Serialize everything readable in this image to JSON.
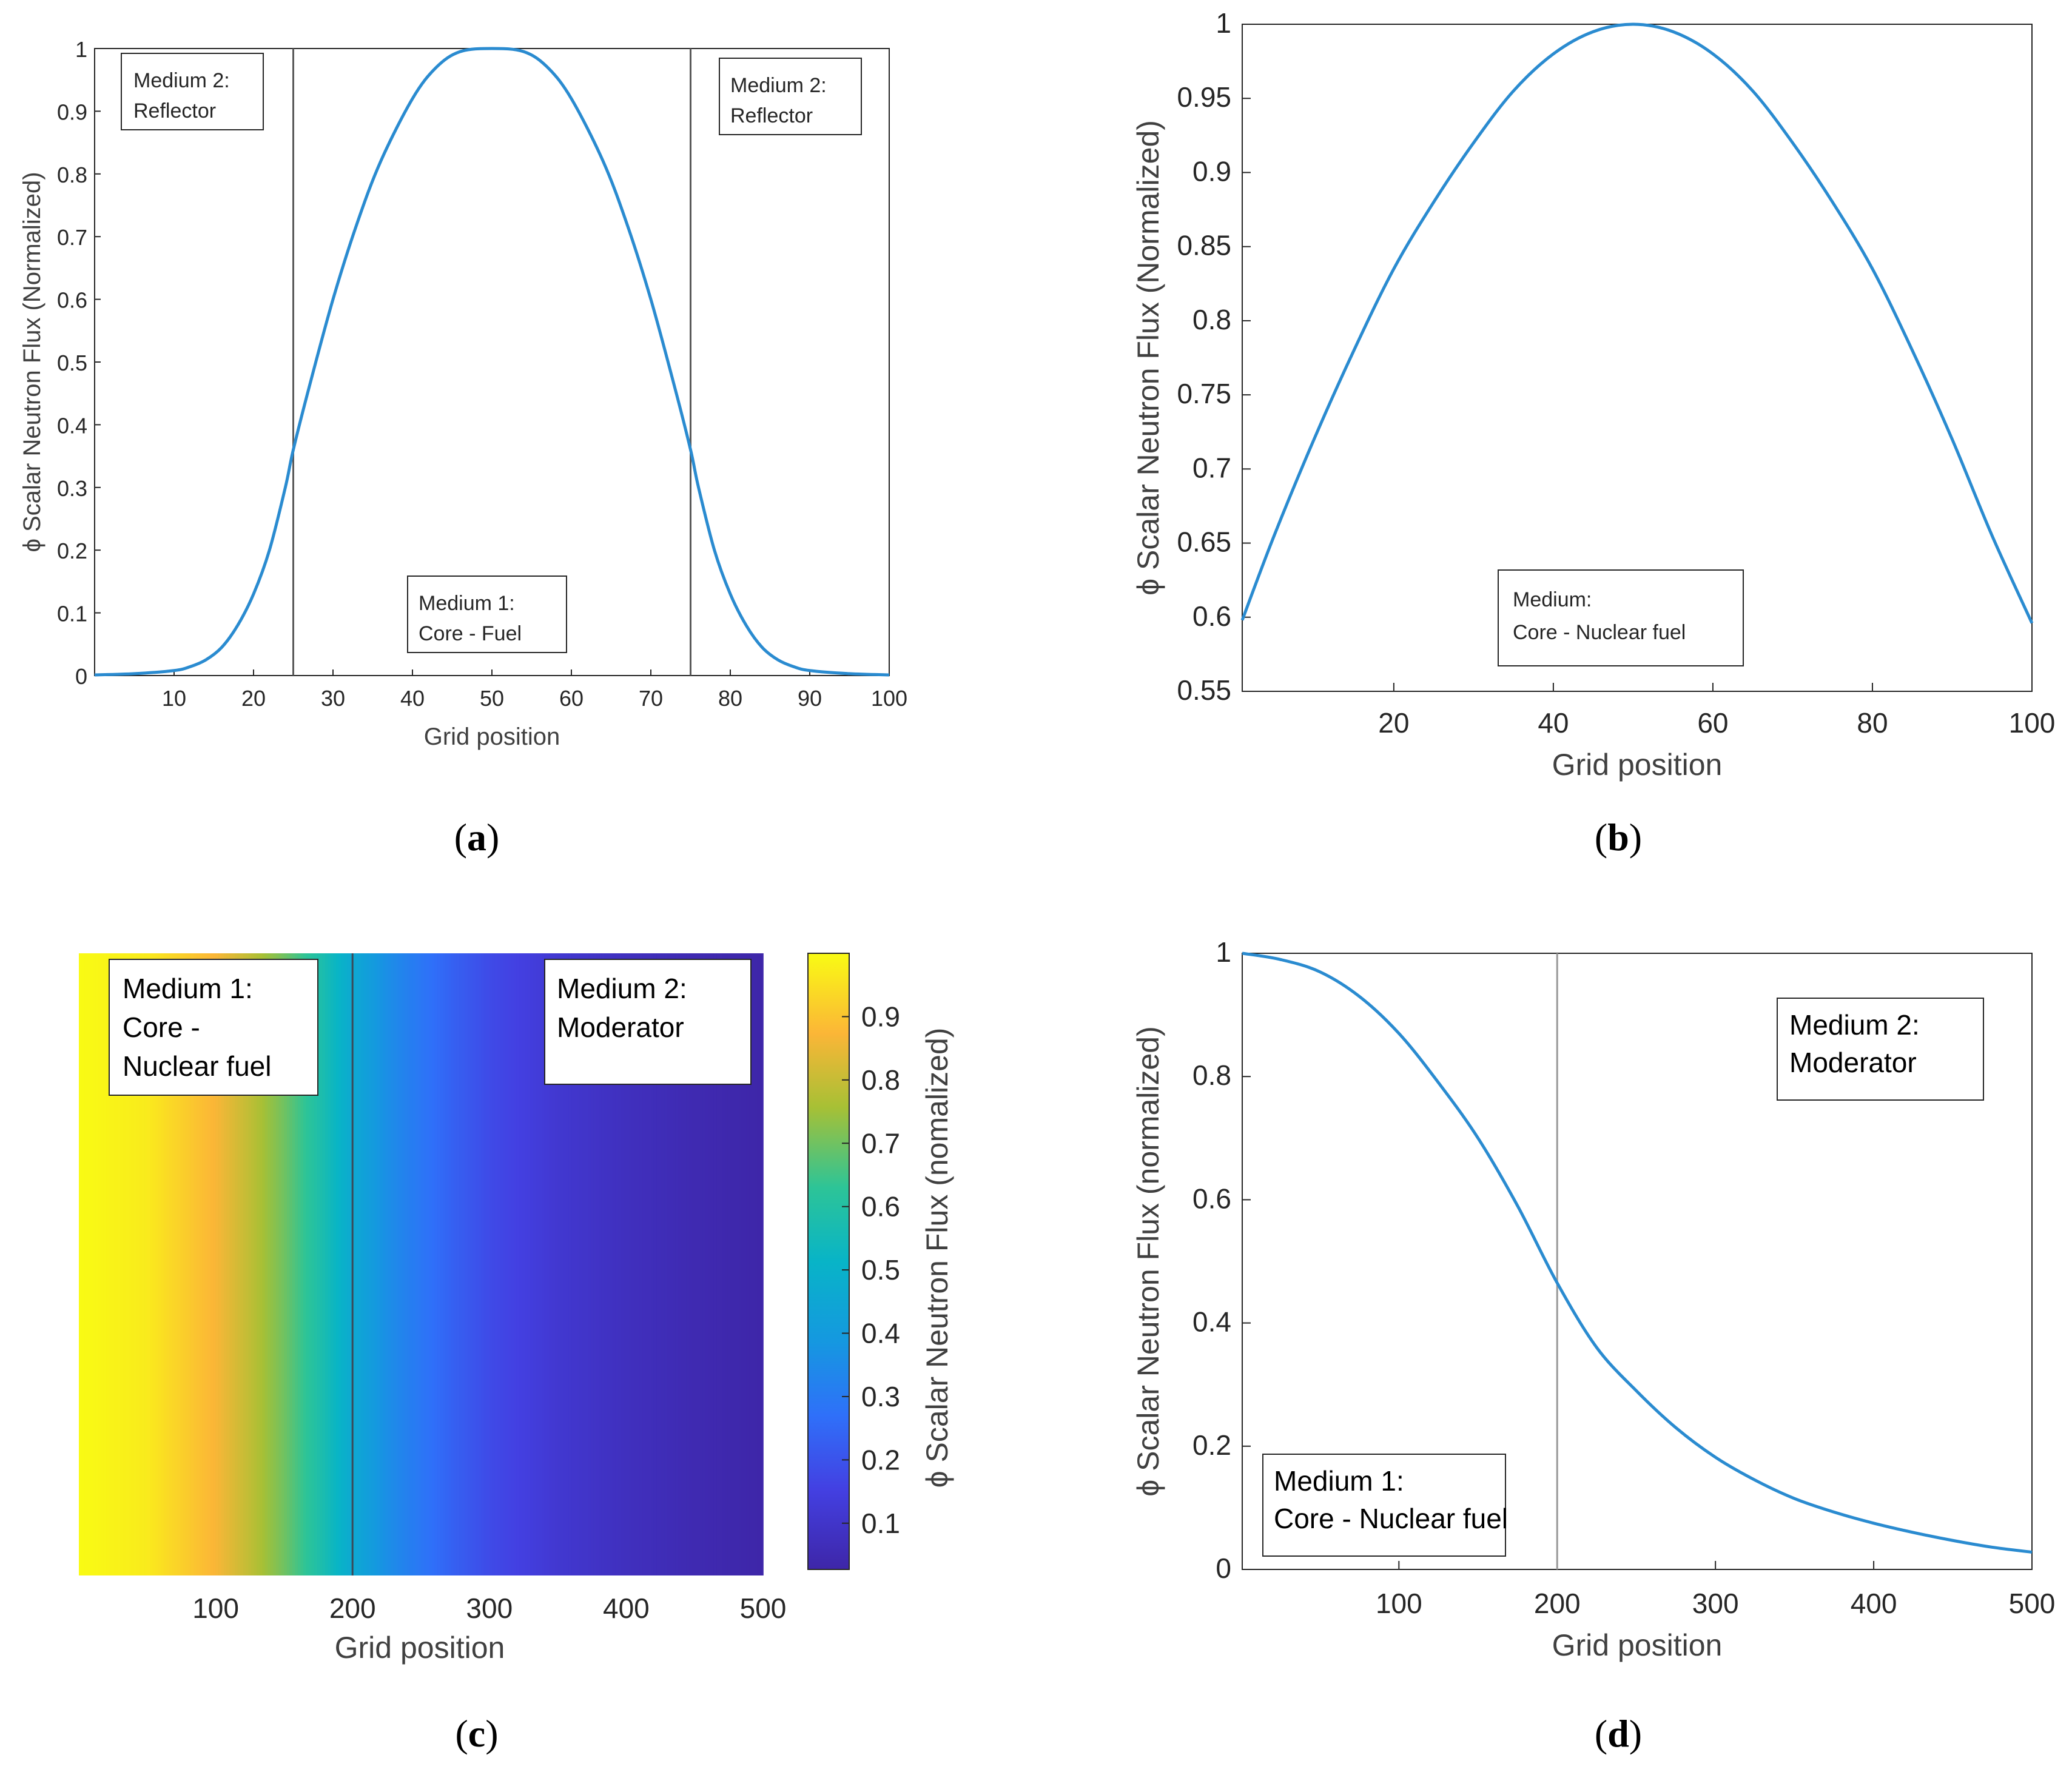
{
  "chart_data": [
    {
      "id": "a",
      "type": "line",
      "caption_letter": "a",
      "xlabel": "Grid position",
      "ylabel": "ϕ Scalar Neutron Flux (Normalized)",
      "xlim": [
        0,
        100
      ],
      "ylim": [
        0,
        1
      ],
      "x_ticks": [
        10,
        20,
        30,
        40,
        50,
        60,
        70,
        80,
        90,
        100
      ],
      "y_ticks": [
        0,
        0.1,
        0.2,
        0.3,
        0.4,
        0.5,
        0.6,
        0.7,
        0.8,
        0.9,
        1
      ],
      "boundaries": [
        25,
        75
      ],
      "series": [
        {
          "name": "flux",
          "color": "#2a8bd0",
          "x": [
            0,
            5,
            10,
            12,
            14,
            16,
            18,
            20,
            22,
            24,
            25,
            27,
            30,
            33,
            36,
            40,
            43,
            46,
            50,
            54,
            57,
            60,
            64,
            67,
            70,
            73,
            75,
            76,
            78,
            80,
            82,
            84,
            86,
            88,
            90,
            95,
            100
          ],
          "y": [
            0.001,
            0.003,
            0.008,
            0.014,
            0.025,
            0.045,
            0.08,
            0.13,
            0.2,
            0.3,
            0.36,
            0.46,
            0.6,
            0.72,
            0.82,
            0.92,
            0.97,
            0.995,
            1.0,
            0.995,
            0.97,
            0.92,
            0.82,
            0.72,
            0.6,
            0.46,
            0.36,
            0.3,
            0.2,
            0.13,
            0.08,
            0.045,
            0.025,
            0.014,
            0.008,
            0.003,
            0.001
          ]
        }
      ],
      "annotations": [
        {
          "lines": [
            "Medium 2:",
            "Reflector"
          ]
        },
        {
          "lines": [
            "Medium 2:",
            "Reflector"
          ]
        },
        {
          "lines": [
            "Medium 1:",
            "Core - Fuel"
          ]
        }
      ]
    },
    {
      "id": "b",
      "type": "line",
      "caption_letter": "b",
      "xlabel": "Grid position",
      "ylabel": "ϕ Scalar Neutron Flux (Normalized)",
      "xlim": [
        1,
        100
      ],
      "ylim": [
        0.55,
        1
      ],
      "x_ticks": [
        20,
        40,
        60,
        80,
        100
      ],
      "y_ticks": [
        0.55,
        0.6,
        0.65,
        0.7,
        0.75,
        0.8,
        0.85,
        0.9,
        0.95,
        1
      ],
      "boundaries": [],
      "series": [
        {
          "name": "flux",
          "color": "#2a8bd0",
          "x": [
            1,
            5,
            10,
            15,
            20,
            25,
            30,
            35,
            40,
            45,
            50,
            55,
            60,
            65,
            70,
            75,
            80,
            85,
            90,
            95,
            100
          ],
          "y": [
            0.598,
            0.655,
            0.72,
            0.78,
            0.835,
            0.88,
            0.92,
            0.955,
            0.98,
            0.995,
            1.0,
            0.995,
            0.98,
            0.955,
            0.92,
            0.88,
            0.835,
            0.78,
            0.72,
            0.655,
            0.596
          ]
        }
      ],
      "annotations": [
        {
          "lines": [
            "Medium:",
            "Core - Nuclear fuel"
          ]
        }
      ]
    },
    {
      "id": "c",
      "type": "heatmap",
      "caption_letter": "c",
      "xlabel": "Grid position",
      "colorbar_label": "ϕ Scalar Neutron Flux (nomalized)",
      "xlim": [
        0,
        500
      ],
      "x_ticks": [
        100,
        200,
        300,
        400,
        500
      ],
      "colorbar_ticks": [
        0.1,
        0.2,
        0.3,
        0.4,
        0.5,
        0.6,
        0.7,
        0.8,
        0.9
      ],
      "colorbar_range": [
        0.027,
        1
      ],
      "boundaries": [
        200
      ],
      "profile_x": [
        0,
        50,
        100,
        125,
        150,
        175,
        200,
        225,
        250,
        275,
        300,
        350,
        400,
        450,
        500
      ],
      "profile_y": [
        1.0,
        0.97,
        0.87,
        0.79,
        0.7,
        0.59,
        0.46,
        0.36,
        0.29,
        0.23,
        0.18,
        0.115,
        0.075,
        0.047,
        0.028
      ],
      "annotations": [
        {
          "lines": [
            "Medium 1:",
            "Core -",
            "Nuclear fuel"
          ]
        },
        {
          "lines": [
            "Medium 2:",
            "Moderator"
          ]
        }
      ]
    },
    {
      "id": "d",
      "type": "line",
      "caption_letter": "d",
      "xlabel": "Grid position",
      "ylabel": "ϕ Scalar Neutron Flux (normalized)",
      "xlim": [
        1,
        500
      ],
      "ylim": [
        0,
        1
      ],
      "x_ticks": [
        100,
        200,
        300,
        400,
        500
      ],
      "y_ticks": [
        0,
        0.2,
        0.4,
        0.6,
        0.8,
        1
      ],
      "boundaries": [
        200
      ],
      "series": [
        {
          "name": "flux",
          "color": "#2a8bd0",
          "x": [
            1,
            25,
            50,
            75,
            100,
            125,
            150,
            175,
            200,
            225,
            250,
            275,
            300,
            325,
            350,
            375,
            400,
            425,
            450,
            475,
            500
          ],
          "y": [
            1.0,
            0.99,
            0.97,
            0.93,
            0.87,
            0.79,
            0.7,
            0.59,
            0.465,
            0.36,
            0.29,
            0.23,
            0.182,
            0.145,
            0.115,
            0.093,
            0.075,
            0.06,
            0.047,
            0.036,
            0.028
          ]
        }
      ],
      "annotations": [
        {
          "lines": [
            "Medium 2:",
            "Moderator"
          ]
        },
        {
          "lines": [
            "Medium 1:",
            "Core - Nuclear fuel"
          ]
        }
      ]
    }
  ]
}
